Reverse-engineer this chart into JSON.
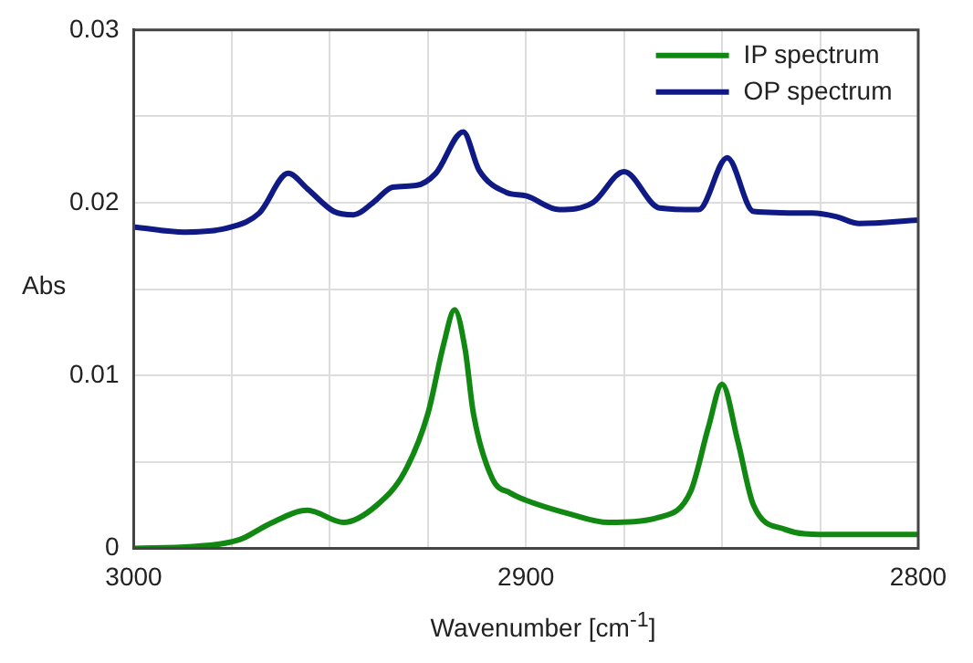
{
  "chart_data": {
    "type": "line",
    "xlabel": "Wavenumber [cm$^{-1}$]",
    "ylabel": "Abs",
    "xlim": [
      3000,
      2800
    ],
    "xticks": [
      3000,
      {
        "value": 2975,
        "label": null
      },
      {
        "value": 2950,
        "label": null
      },
      {
        "value": 2925,
        "label": null
      },
      2900,
      {
        "value": 2875,
        "label": null
      },
      {
        "value": 2850,
        "label": null
      },
      {
        "value": 2825,
        "label": null
      },
      2800
    ],
    "ylim": [
      0,
      0.03
    ],
    "yticks": [
      0,
      {
        "value": 0.005,
        "label": null
      },
      0.01,
      {
        "value": 0.015,
        "label": null
      },
      0.02,
      {
        "value": 0.025,
        "label": null
      },
      0.03
    ],
    "grid": true,
    "legend": "top right",
    "marker": "none",
    "line_style": "solid",
    "series": [
      {
        "name": "IP spectrum",
        "color": "#118811",
        "x": [
          3000,
          2985,
          2973,
          2965.5,
          2955.7,
          2946.5,
          2938,
          2931,
          2925,
          2921,
          2918.2,
          2915.5,
          2913.4,
          2908.5,
          2904,
          2900.2,
          2889,
          2879,
          2866,
          2858,
          2853.5,
          2850,
          2846,
          2842,
          2834,
          2824,
          2800
        ],
        "values": [
          0,
          0.0001,
          0.0005,
          0.0014,
          0.0022,
          0.0015,
          0.0025,
          0.0044,
          0.0078,
          0.0118,
          0.0138,
          0.0115,
          0.0078,
          0.004,
          0.0032,
          0.0028,
          0.002,
          0.0015,
          0.0018,
          0.0033,
          0.007,
          0.0095,
          0.0062,
          0.0025,
          0.0011,
          0.0008,
          0.0008
        ]
      },
      {
        "name": "OP spectrum",
        "color": "#101a85",
        "x": [
          3000,
          2987,
          2975,
          2968,
          2960.6,
          2955.7,
          2949,
          2944,
          2939,
          2934,
          2928,
          2923,
          2916,
          2912,
          2905,
          2900,
          2891.5,
          2883,
          2875,
          2866,
          2856,
          2848.7,
          2842,
          2827,
          2821,
          2815,
          2800
        ],
        "values": [
          0.0186,
          0.0183,
          0.0186,
          0.0194,
          0.0217,
          0.0208,
          0.0195,
          0.0193,
          0.02,
          0.0209,
          0.021,
          0.0217,
          0.0241,
          0.0219,
          0.0206,
          0.0204,
          0.0196,
          0.02,
          0.0218,
          0.0197,
          0.0196,
          0.0226,
          0.0195,
          0.0194,
          0.0192,
          0.0188,
          0.019
        ]
      }
    ]
  }
}
